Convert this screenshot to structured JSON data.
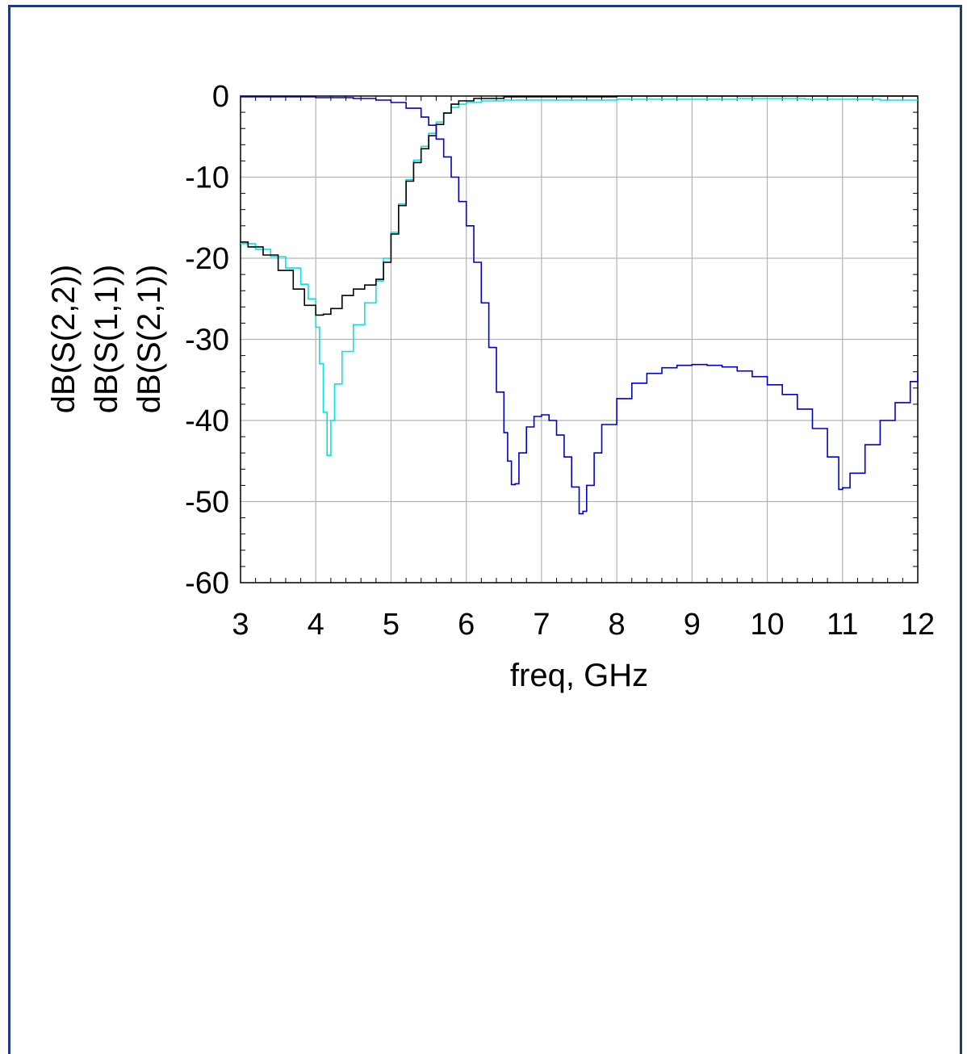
{
  "chart_data": {
    "type": "line",
    "xlabel": "freq, GHz",
    "ylabel_parts": [
      {
        "text": "dB(S(2,2))",
        "color": "#00e5e5"
      },
      {
        "text": "dB(S(1,1))",
        "color": "#000000"
      },
      {
        "text": "dB(S(2,1))",
        "color": "#0000cc"
      }
    ],
    "xlim": [
      3,
      12
    ],
    "ylim": [
      -60,
      0
    ],
    "x_ticks": [
      "3",
      "4",
      "5",
      "6",
      "7",
      "8",
      "9",
      "10",
      "11",
      "12"
    ],
    "y_ticks": [
      "0",
      "-10",
      "-20",
      "-30",
      "-40",
      "-50",
      "-60"
    ],
    "grid": true,
    "series": [
      {
        "name": "dB(S(2,2))",
        "color": "#00e5e5",
        "points": [
          [
            3.0,
            -18.2
          ],
          [
            3.2,
            -18.9
          ],
          [
            3.4,
            -19.8
          ],
          [
            3.6,
            -21.2
          ],
          [
            3.8,
            -23.2
          ],
          [
            3.9,
            -25.0
          ],
          [
            4.0,
            -28.5
          ],
          [
            4.05,
            -33.0
          ],
          [
            4.1,
            -39.0
          ],
          [
            4.15,
            -44.3
          ],
          [
            4.2,
            -40.0
          ],
          [
            4.25,
            -35.5
          ],
          [
            4.35,
            -31.5
          ],
          [
            4.5,
            -28.2
          ],
          [
            4.65,
            -25.5
          ],
          [
            4.8,
            -22.8
          ],
          [
            4.9,
            -20.0
          ],
          [
            5.0,
            -16.8
          ],
          [
            5.1,
            -13.3
          ],
          [
            5.2,
            -10.3
          ],
          [
            5.3,
            -7.9
          ],
          [
            5.4,
            -6.2
          ],
          [
            5.5,
            -4.6
          ],
          [
            5.6,
            -3.2
          ],
          [
            5.7,
            -2.1
          ],
          [
            5.8,
            -1.4
          ],
          [
            5.9,
            -1.0
          ],
          [
            6.0,
            -0.8
          ],
          [
            6.2,
            -0.6
          ],
          [
            6.5,
            -0.5
          ],
          [
            7.0,
            -0.5
          ],
          [
            8.0,
            -0.4
          ],
          [
            9.0,
            -0.4
          ],
          [
            9.6,
            -0.3
          ],
          [
            10.0,
            -0.3
          ],
          [
            10.5,
            -0.4
          ],
          [
            11.0,
            -0.4
          ],
          [
            11.5,
            -0.5
          ],
          [
            12.0,
            -0.5
          ]
        ]
      },
      {
        "name": "dB(S(1,1))",
        "color": "#000000",
        "points": [
          [
            3.0,
            -18.0
          ],
          [
            3.1,
            -18.6
          ],
          [
            3.3,
            -19.6
          ],
          [
            3.5,
            -21.5
          ],
          [
            3.7,
            -23.8
          ],
          [
            3.85,
            -25.8
          ],
          [
            4.0,
            -27.0
          ],
          [
            4.1,
            -26.9
          ],
          [
            4.2,
            -26.2
          ],
          [
            4.35,
            -24.6
          ],
          [
            4.5,
            -23.8
          ],
          [
            4.65,
            -23.3
          ],
          [
            4.8,
            -22.6
          ],
          [
            4.9,
            -20.5
          ],
          [
            5.0,
            -17.0
          ],
          [
            5.1,
            -13.5
          ],
          [
            5.2,
            -10.5
          ],
          [
            5.3,
            -8.2
          ],
          [
            5.4,
            -6.5
          ],
          [
            5.5,
            -4.9
          ],
          [
            5.6,
            -3.5
          ],
          [
            5.7,
            -2.1
          ],
          [
            5.8,
            -1.0
          ],
          [
            5.9,
            -0.6
          ],
          [
            6.1,
            -0.3
          ],
          [
            6.5,
            -0.1
          ],
          [
            7.0,
            -0.1
          ],
          [
            8.0,
            0.0
          ],
          [
            9.0,
            0.0
          ],
          [
            10.0,
            0.0
          ],
          [
            11.0,
            0.0
          ],
          [
            12.0,
            0.0
          ]
        ]
      },
      {
        "name": "dB(S(2,1))",
        "color": "#0000cc",
        "points": [
          [
            3.0,
            -0.1
          ],
          [
            3.5,
            -0.1
          ],
          [
            4.0,
            -0.2
          ],
          [
            4.5,
            -0.3
          ],
          [
            4.8,
            -0.5
          ],
          [
            5.0,
            -0.8
          ],
          [
            5.2,
            -1.5
          ],
          [
            5.4,
            -2.6
          ],
          [
            5.5,
            -3.6
          ],
          [
            5.6,
            -5.3
          ],
          [
            5.7,
            -7.5
          ],
          [
            5.8,
            -10.0
          ],
          [
            5.9,
            -13.0
          ],
          [
            6.0,
            -16.0
          ],
          [
            6.1,
            -20.5
          ],
          [
            6.2,
            -25.5
          ],
          [
            6.3,
            -31.0
          ],
          [
            6.4,
            -36.5
          ],
          [
            6.5,
            -41.5
          ],
          [
            6.55,
            -45.0
          ],
          [
            6.6,
            -47.9
          ],
          [
            6.65,
            -47.8
          ],
          [
            6.7,
            -44.0
          ],
          [
            6.8,
            -40.8
          ],
          [
            6.9,
            -39.5
          ],
          [
            7.0,
            -39.3
          ],
          [
            7.1,
            -40.0
          ],
          [
            7.2,
            -41.8
          ],
          [
            7.3,
            -44.5
          ],
          [
            7.4,
            -48.2
          ],
          [
            7.5,
            -51.5
          ],
          [
            7.55,
            -51.2
          ],
          [
            7.6,
            -48.0
          ],
          [
            7.7,
            -44.0
          ],
          [
            7.8,
            -40.5
          ],
          [
            8.0,
            -37.3
          ],
          [
            8.2,
            -35.4
          ],
          [
            8.4,
            -34.2
          ],
          [
            8.6,
            -33.5
          ],
          [
            8.8,
            -33.2
          ],
          [
            9.0,
            -33.1
          ],
          [
            9.2,
            -33.2
          ],
          [
            9.4,
            -33.4
          ],
          [
            9.6,
            -33.9
          ],
          [
            9.8,
            -34.6
          ],
          [
            10.0,
            -35.6
          ],
          [
            10.2,
            -36.8
          ],
          [
            10.4,
            -38.6
          ],
          [
            10.6,
            -41.0
          ],
          [
            10.8,
            -44.5
          ],
          [
            10.95,
            -48.5
          ],
          [
            11.0,
            -48.3
          ],
          [
            11.1,
            -46.5
          ],
          [
            11.3,
            -43.0
          ],
          [
            11.5,
            -40.0
          ],
          [
            11.7,
            -37.8
          ],
          [
            11.9,
            -35.2
          ],
          [
            12.0,
            -34.2
          ]
        ]
      }
    ]
  }
}
